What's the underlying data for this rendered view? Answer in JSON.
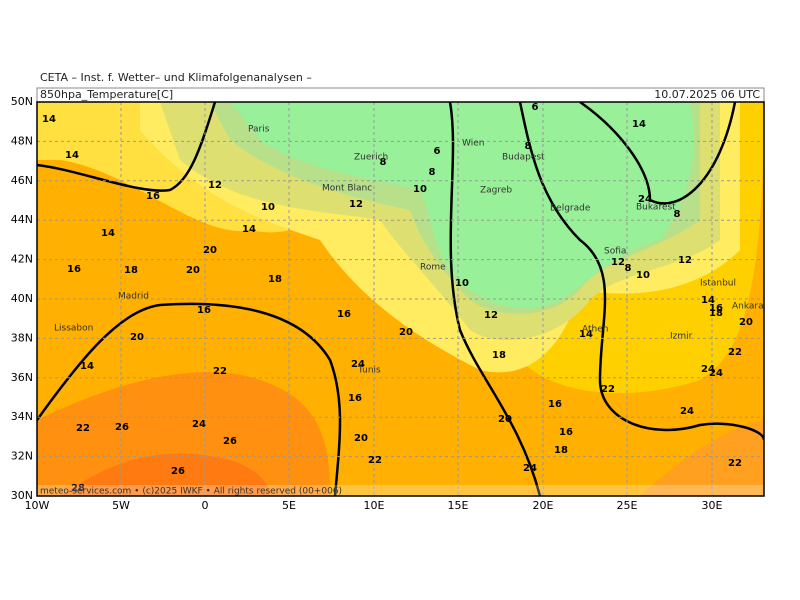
{
  "header": {
    "source": "CETA – Inst. f. Wetter– und Klimafolgenanalysen –",
    "field": "850hpa_Temperature[C]",
    "valid": "10.07.2025 06 UTC"
  },
  "map": {
    "lon_labels": [
      "10W",
      "5W",
      "0",
      "5E",
      "10E",
      "15E",
      "20E",
      "25E",
      "30E"
    ],
    "lat_labels": [
      "50N",
      "48N",
      "46N",
      "44N",
      "42N",
      "40N",
      "38N",
      "36N",
      "34N",
      "32N",
      "30N"
    ],
    "cities": [
      "Paris",
      "Zuerich",
      "Wien",
      "Budapest",
      "Zagreb",
      "Belgrade",
      "Bukarest",
      "Sofia",
      "Rome",
      "Istanbul",
      "Ankara",
      "Madrid",
      "Lissabon",
      "Athen",
      "Izmir",
      "Tunis",
      "Mont Blanc"
    ],
    "contour_labels": [
      14,
      14,
      12,
      16,
      10,
      14,
      12,
      10,
      8,
      6,
      6,
      8,
      8,
      14,
      20,
      16,
      18,
      20,
      18,
      16,
      16,
      20,
      20,
      14,
      22,
      24,
      18,
      12,
      10,
      12,
      8,
      10,
      12,
      14,
      16,
      18,
      20,
      22,
      24,
      24,
      24,
      22,
      16,
      16,
      18,
      20,
      16,
      20,
      22,
      24,
      22,
      22,
      26,
      24,
      26,
      26,
      28,
      24,
      8,
      14,
      14
    ],
    "footer": "meteo-services.com • (c)2025 IWKF • All rights reserved (00+006)"
  }
}
